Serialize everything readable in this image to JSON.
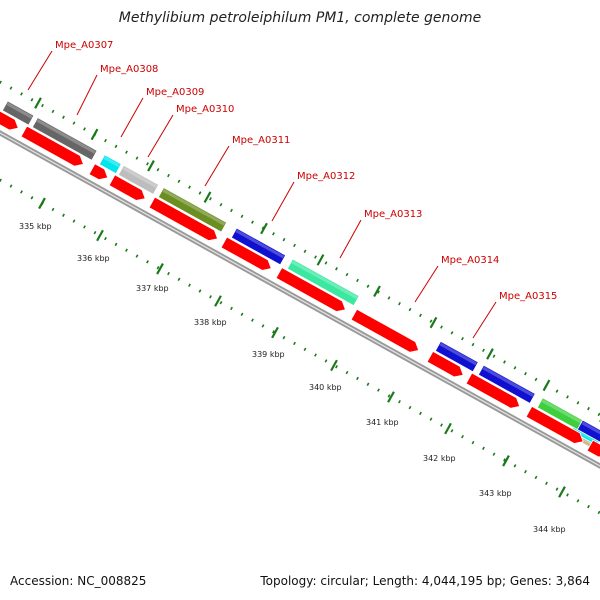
{
  "title": "Methylibium petroleiphilum PM1, complete genome",
  "footer": {
    "accession": "Accession: NC_008825",
    "summary": "Topology: circular; Length: 4,044,195 bp; Genes: 3,864"
  },
  "colors": {
    "backbone": "#8c8c8c",
    "cds": "#ff0000",
    "tick": "#1a7a1a",
    "label": "#cc0000"
  },
  "genes": [
    {
      "id": "Mpe_A0307",
      "color": "#666666"
    },
    {
      "id": "Mpe_A0308",
      "color": "#666666"
    },
    {
      "id": "Mpe_A0309",
      "color": "#00e5ee"
    },
    {
      "id": "Mpe_A0310",
      "color": "#bdbdbd"
    },
    {
      "id": "Mpe_A0311",
      "color": "#6b8e23"
    },
    {
      "id": "Mpe_A0312",
      "color": "#1010d0"
    },
    {
      "id": "Mpe_A0313",
      "color": "#3be8a0"
    },
    {
      "id": "Mpe_A0314",
      "color": "#1010d0"
    },
    {
      "id": "Mpe_A0315",
      "color": "#1010d0"
    }
  ],
  "extra_features": [
    {
      "name": "green-feature",
      "color": "#3ecf3e"
    },
    {
      "name": "blue-feature-end",
      "color": "#1010d0"
    },
    {
      "name": "cyan-feature-end",
      "color": "#00e5ee"
    },
    {
      "name": "tan-feature-end",
      "color": "#c8b88a"
    }
  ],
  "kbp_labels": [
    "335 kbp",
    "336 kbp",
    "337 kbp",
    "338 kbp",
    "339 kbp",
    "340 kbp",
    "341 kbp",
    "342 kbp",
    "343 kbp",
    "344 kbp"
  ]
}
